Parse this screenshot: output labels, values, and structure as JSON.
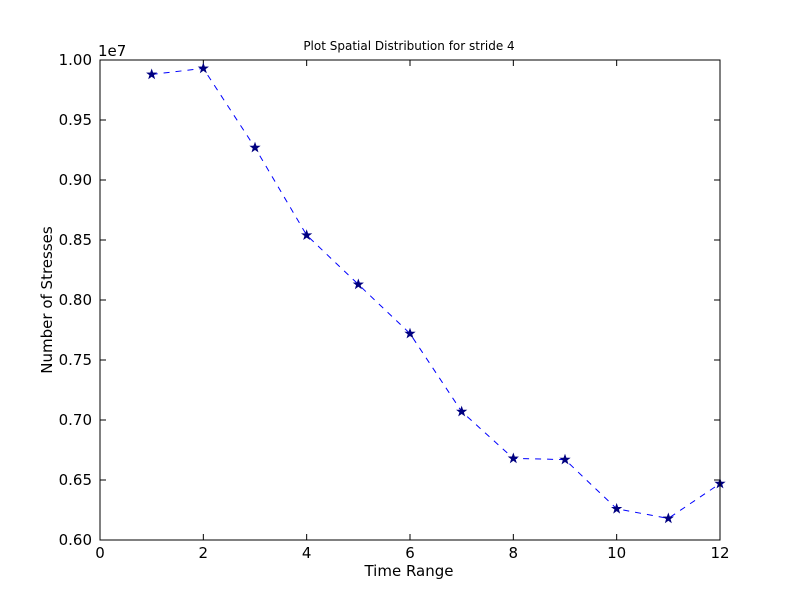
{
  "chart_data": {
    "type": "line",
    "title": "Plot Spatial Distribution for stride 4",
    "xlabel": "Time Range",
    "ylabel": "Number of Stresses",
    "y_offset_label": "1e7",
    "xlim": [
      0,
      12
    ],
    "ylim": [
      0.6,
      1.0
    ],
    "x_ticks": [
      0,
      2,
      4,
      6,
      8,
      10,
      12
    ],
    "x_tick_labels": [
      "0",
      "2",
      "4",
      "6",
      "8",
      "10",
      "12"
    ],
    "y_ticks": [
      0.6,
      0.65,
      0.7,
      0.75,
      0.8,
      0.85,
      0.9,
      0.95,
      1.0
    ],
    "y_tick_labels": [
      "0.60",
      "0.65",
      "0.70",
      "0.75",
      "0.80",
      "0.85",
      "0.90",
      "0.95",
      "1.00"
    ],
    "grid": false,
    "legend": "none",
    "series": [
      {
        "line_color": "#0000ff",
        "marker_color": "#000080",
        "line_style": "dashed",
        "marker": "star",
        "x": [
          1,
          2,
          3,
          4,
          5,
          6,
          7,
          8,
          9,
          10,
          11,
          12
        ],
        "y": [
          0.988,
          0.993,
          0.927,
          0.854,
          0.813,
          0.772,
          0.707,
          0.668,
          0.667,
          0.626,
          0.618,
          0.647
        ]
      }
    ]
  }
}
